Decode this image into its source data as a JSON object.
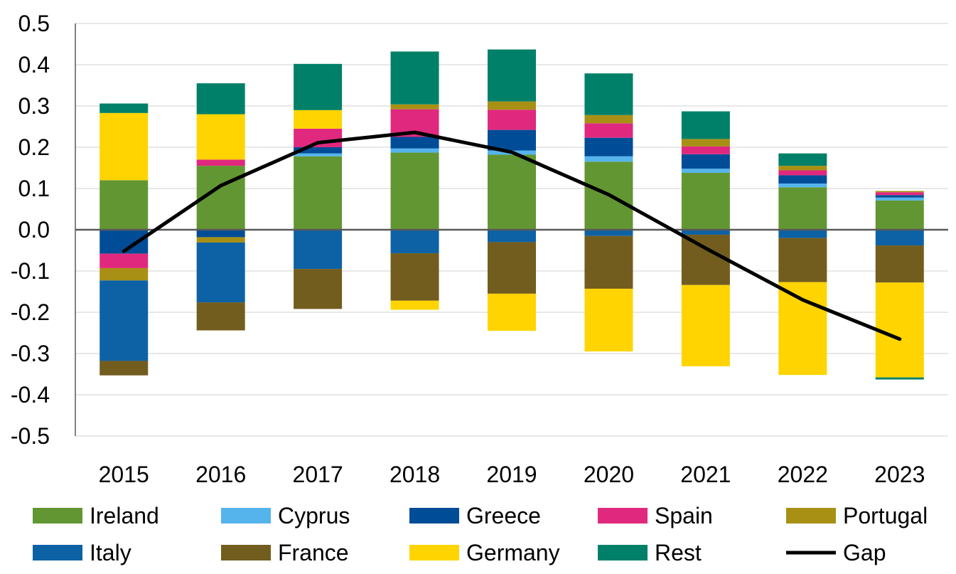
{
  "chart_data": {
    "type": "bar",
    "stacked": true,
    "categories": [
      "2015",
      "2016",
      "2017",
      "2018",
      "2019",
      "2020",
      "2021",
      "2022",
      "2023"
    ],
    "ylim": [
      -0.5,
      0.5
    ],
    "yticks": [
      0.5,
      0.4,
      0.3,
      0.2,
      0.1,
      0.0,
      -0.1,
      -0.2,
      -0.3,
      -0.4,
      -0.5
    ],
    "ytick_labels": [
      "0.5",
      "0.4",
      "0.3",
      "0.2",
      "0.1",
      "0.0",
      "-0.1",
      "-0.2",
      "-0.3",
      "-0.4",
      "-0.5"
    ],
    "grid": true,
    "legend_position": "bottom",
    "series": [
      {
        "name": "Ireland",
        "color": "#629632",
        "values": [
          0.12,
          0.155,
          0.178,
          0.187,
          0.182,
          0.165,
          0.138,
          0.103,
          0.071
        ]
      },
      {
        "name": "Cyprus",
        "color": "#55b4ec",
        "values": [
          0.0,
          0.0,
          0.007,
          0.01,
          0.01,
          0.013,
          0.01,
          0.009,
          0.007
        ]
      },
      {
        "name": "Greece",
        "color": "#004c97",
        "values": [
          -0.058,
          -0.018,
          0.015,
          0.028,
          0.05,
          0.045,
          0.035,
          0.02,
          0.006
        ]
      },
      {
        "name": "Spain",
        "color": "#e0297e",
        "values": [
          -0.035,
          0.015,
          0.045,
          0.067,
          0.049,
          0.035,
          0.019,
          0.012,
          0.007
        ]
      },
      {
        "name": "Portugal",
        "color": "#a89015",
        "values": [
          -0.03,
          -0.013,
          0.0,
          0.012,
          0.02,
          0.02,
          0.018,
          0.011,
          0.003
        ]
      },
      {
        "name": "Italy",
        "color": "#0d62a6",
        "values": [
          -0.195,
          -0.145,
          -0.095,
          -0.057,
          -0.03,
          -0.015,
          -0.012,
          -0.02,
          -0.038
        ]
      },
      {
        "name": "France",
        "color": "#725d1e",
        "values": [
          -0.035,
          -0.068,
          -0.097,
          -0.115,
          -0.125,
          -0.128,
          -0.122,
          -0.107,
          -0.09
        ]
      },
      {
        "name": "Germany",
        "color": "#ffd400",
        "values": [
          0.163,
          0.11,
          0.045,
          -0.022,
          -0.09,
          -0.152,
          -0.197,
          -0.225,
          -0.23
        ]
      },
      {
        "name": "Rest",
        "color": "#008068",
        "values": [
          0.023,
          0.075,
          0.112,
          0.128,
          0.126,
          0.101,
          0.067,
          0.03,
          -0.005
        ]
      }
    ],
    "line": {
      "name": "Gap",
      "color": "#000000",
      "values": [
        -0.052,
        0.107,
        0.211,
        0.236,
        0.188,
        0.085,
        -0.045,
        -0.17,
        -0.265
      ]
    }
  }
}
